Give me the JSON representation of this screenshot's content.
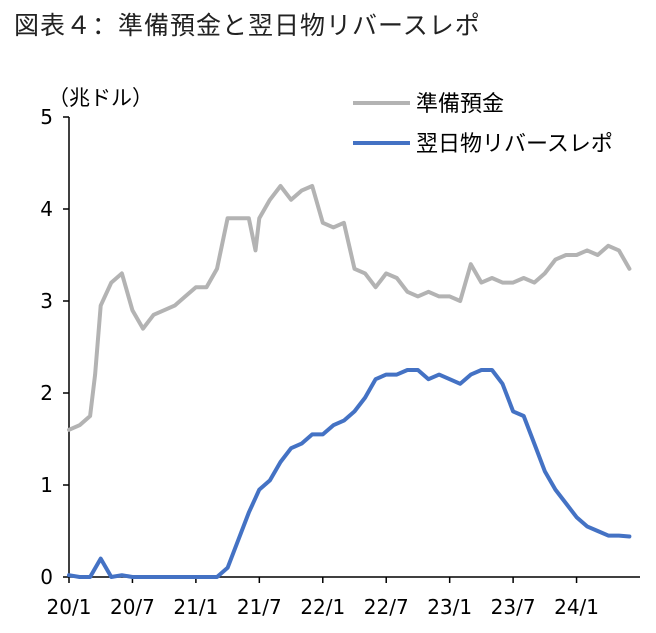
{
  "chart_data": {
    "type": "line",
    "title": "図表４：準備預金と翌日物リバースレポ",
    "ylabel": "（兆ドル）",
    "xlabel": "",
    "ylim": [
      0,
      5
    ],
    "yticks": [
      "0",
      "1",
      "2",
      "3",
      "4",
      "5"
    ],
    "xticks": [
      "20/1",
      "20/7",
      "21/1",
      "21/7",
      "22/1",
      "22/7",
      "23/1",
      "23/7",
      "24/1"
    ],
    "xlim": [
      "2020-01",
      "2024-07"
    ],
    "grid": false,
    "legend_position": "top-right",
    "series": [
      {
        "name": "準備預金",
        "color": "#b3b3b3",
        "points": [
          [
            "2020-01",
            1.6
          ],
          [
            "2020-02",
            1.65
          ],
          [
            "2020-03",
            1.75
          ],
          [
            "2020-03-15",
            2.2
          ],
          [
            "2020-04",
            2.95
          ],
          [
            "2020-05",
            3.2
          ],
          [
            "2020-06",
            3.3
          ],
          [
            "2020-07",
            2.9
          ],
          [
            "2020-08",
            2.7
          ],
          [
            "2020-09",
            2.85
          ],
          [
            "2020-10",
            2.9
          ],
          [
            "2020-11",
            2.95
          ],
          [
            "2020-12",
            3.05
          ],
          [
            "2021-01",
            3.15
          ],
          [
            "2021-02",
            3.15
          ],
          [
            "2021-03",
            3.35
          ],
          [
            "2021-04",
            3.9
          ],
          [
            "2021-05",
            3.9
          ],
          [
            "2021-06",
            3.9
          ],
          [
            "2021-06-20",
            3.55
          ],
          [
            "2021-07",
            3.9
          ],
          [
            "2021-08",
            4.1
          ],
          [
            "2021-09",
            4.25
          ],
          [
            "2021-10",
            4.1
          ],
          [
            "2021-11",
            4.2
          ],
          [
            "2021-12",
            4.25
          ],
          [
            "2022-01",
            3.85
          ],
          [
            "2022-02",
            3.8
          ],
          [
            "2022-03",
            3.85
          ],
          [
            "2022-04",
            3.35
          ],
          [
            "2022-05",
            3.3
          ],
          [
            "2022-06",
            3.15
          ],
          [
            "2022-07",
            3.3
          ],
          [
            "2022-08",
            3.25
          ],
          [
            "2022-09",
            3.1
          ],
          [
            "2022-10",
            3.05
          ],
          [
            "2022-11",
            3.1
          ],
          [
            "2022-12",
            3.05
          ],
          [
            "2023-01",
            3.05
          ],
          [
            "2023-02",
            3.0
          ],
          [
            "2023-03",
            3.4
          ],
          [
            "2023-04",
            3.2
          ],
          [
            "2023-05",
            3.25
          ],
          [
            "2023-06",
            3.2
          ],
          [
            "2023-07",
            3.2
          ],
          [
            "2023-08",
            3.25
          ],
          [
            "2023-09",
            3.2
          ],
          [
            "2023-10",
            3.3
          ],
          [
            "2023-11",
            3.45
          ],
          [
            "2023-12",
            3.5
          ],
          [
            "2024-01",
            3.5
          ],
          [
            "2024-02",
            3.55
          ],
          [
            "2024-03",
            3.5
          ],
          [
            "2024-04",
            3.6
          ],
          [
            "2024-05",
            3.55
          ],
          [
            "2024-06",
            3.35
          ]
        ]
      },
      {
        "name": "翌日物リバースレポ",
        "color": "#4472c4",
        "points": [
          [
            "2020-01",
            0.02
          ],
          [
            "2020-02",
            0.0
          ],
          [
            "2020-03",
            0.0
          ],
          [
            "2020-04",
            0.2
          ],
          [
            "2020-05",
            0.0
          ],
          [
            "2020-06",
            0.02
          ],
          [
            "2020-07",
            0.0
          ],
          [
            "2020-12",
            0.0
          ],
          [
            "2021-01",
            0.0
          ],
          [
            "2021-02",
            0.0
          ],
          [
            "2021-03",
            0.0
          ],
          [
            "2021-04",
            0.1
          ],
          [
            "2021-05",
            0.4
          ],
          [
            "2021-06",
            0.7
          ],
          [
            "2021-07",
            0.95
          ],
          [
            "2021-08",
            1.05
          ],
          [
            "2021-09",
            1.25
          ],
          [
            "2021-10",
            1.4
          ],
          [
            "2021-11",
            1.45
          ],
          [
            "2021-12",
            1.55
          ],
          [
            "2022-01",
            1.55
          ],
          [
            "2022-02",
            1.65
          ],
          [
            "2022-03",
            1.7
          ],
          [
            "2022-04",
            1.8
          ],
          [
            "2022-05",
            1.95
          ],
          [
            "2022-06",
            2.15
          ],
          [
            "2022-07",
            2.2
          ],
          [
            "2022-08",
            2.2
          ],
          [
            "2022-09",
            2.25
          ],
          [
            "2022-10",
            2.25
          ],
          [
            "2022-11",
            2.15
          ],
          [
            "2022-12",
            2.2
          ],
          [
            "2023-01",
            2.15
          ],
          [
            "2023-02",
            2.1
          ],
          [
            "2023-03",
            2.2
          ],
          [
            "2023-04",
            2.25
          ],
          [
            "2023-05",
            2.25
          ],
          [
            "2023-06",
            2.1
          ],
          [
            "2023-07",
            1.8
          ],
          [
            "2023-08",
            1.75
          ],
          [
            "2023-09",
            1.45
          ],
          [
            "2023-10",
            1.15
          ],
          [
            "2023-11",
            0.95
          ],
          [
            "2023-12",
            0.8
          ],
          [
            "2024-01",
            0.65
          ],
          [
            "2024-02",
            0.55
          ],
          [
            "2024-03",
            0.5
          ],
          [
            "2024-04",
            0.45
          ],
          [
            "2024-05",
            0.45
          ],
          [
            "2024-06",
            0.44
          ]
        ]
      }
    ]
  }
}
